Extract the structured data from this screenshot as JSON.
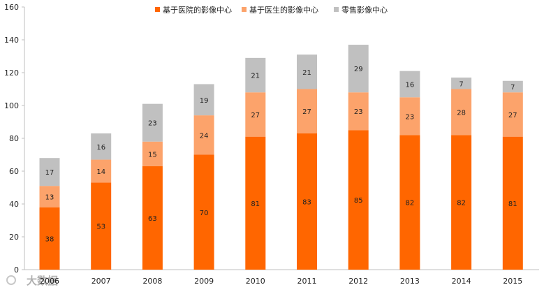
{
  "chart_data": {
    "type": "bar",
    "stacked": true,
    "categories": [
      "2006",
      "2007",
      "2008",
      "2009",
      "2010",
      "2011",
      "2012",
      "2013",
      "2014",
      "2015"
    ],
    "series": [
      {
        "name": "基于医院的影像中心",
        "color": "#ff6600",
        "values": [
          38,
          53,
          63,
          70,
          81,
          83,
          85,
          82,
          82,
          81
        ]
      },
      {
        "name": "基于医生的影像中心",
        "color": "#fca36b",
        "values": [
          13,
          14,
          15,
          24,
          27,
          27,
          23,
          23,
          28,
          27
        ]
      },
      {
        "name": "零售影像中心",
        "color": "#c0c0c0",
        "values": [
          17,
          16,
          23,
          19,
          21,
          21,
          29,
          16,
          7,
          7
        ]
      }
    ],
    "ylim": [
      0,
      160
    ],
    "yticks": [
      0,
      20,
      40,
      60,
      80,
      100,
      120,
      140,
      160
    ],
    "legend_position": "top-center",
    "grid": false
  },
  "watermark": {
    "text": "大数据"
  }
}
